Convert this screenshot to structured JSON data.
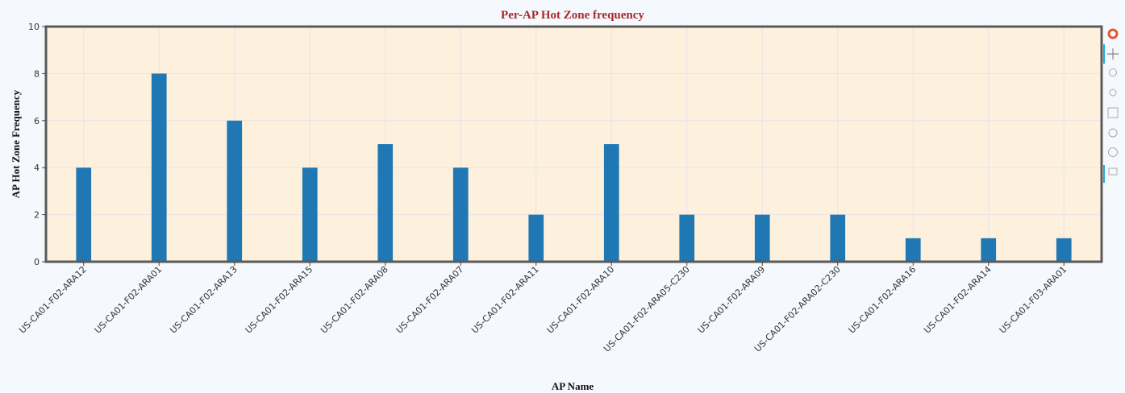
{
  "chart_data": {
    "type": "bar",
    "title": "Per-AP Hot Zone frequency",
    "xlabel": "AP Name",
    "ylabel": "AP Hot Zone Frequency",
    "categories": [
      "US-CA01-F02-ARA12",
      "US-CA01-F02-ARA01",
      "US-CA01-F02-ARA13",
      "US-CA01-F02-ARA15",
      "US-CA01-F02-ARA08",
      "US-CA01-F02-ARA07",
      "US-CA01-F02-ARA11",
      "US-CA01-F02-ARA10",
      "US-CA01-F02-ARA05-C230",
      "US-CA01-F02-ARA09",
      "US-CA01-F02-ARA02-C230",
      "US-CA01-F02-ARA16",
      "US-CA01-F02-ARA14",
      "US-CA01-F03-ARA01"
    ],
    "values": [
      4,
      8,
      6,
      4,
      5,
      4,
      2,
      5,
      2,
      2,
      2,
      1,
      1,
      1
    ],
    "color": "#1f77b4",
    "ylim": [
      0,
      10
    ],
    "yticks": [
      0,
      2,
      4,
      6,
      8,
      10
    ],
    "grid": true
  }
}
